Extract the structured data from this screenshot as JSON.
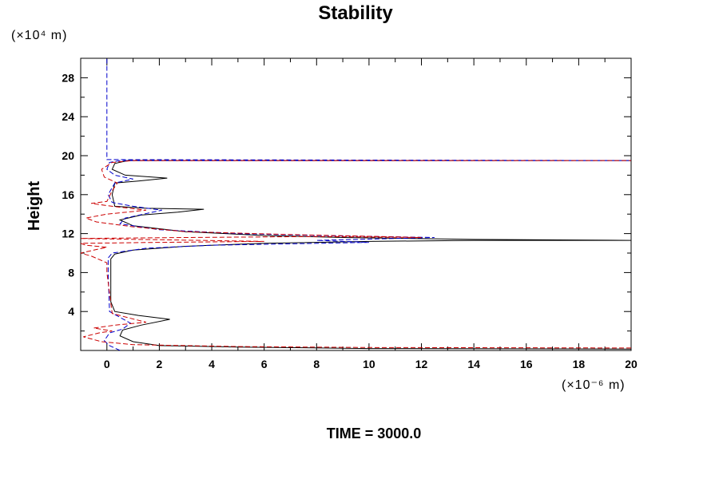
{
  "chart_data": {
    "type": "line",
    "title": "Stability",
    "ylabel": "Height",
    "xlabel": "",
    "x_unit_label": "(×10⁻⁶ m)",
    "y_unit_label": "(×10⁴ m)",
    "footer": "TIME = 3000.0",
    "xlim": [
      -1,
      20
    ],
    "ylim": [
      0,
      30
    ],
    "x_ticks": [
      0,
      2,
      4,
      6,
      8,
      10,
      12,
      14,
      16,
      18,
      20
    ],
    "x_tick_labels": [
      "0",
      "2",
      "4",
      "6",
      "8",
      "10",
      "12",
      "14",
      "16",
      "18",
      "20"
    ],
    "y_ticks": [
      4,
      8,
      12,
      16,
      20,
      24,
      28
    ],
    "y_tick_labels": [
      "4",
      "8",
      "12",
      "16",
      "20",
      "24",
      "28"
    ],
    "grid": false,
    "series": [
      {
        "color": "#000000",
        "style": "solid",
        "points": [
          [
            20,
            0.15
          ],
          [
            10,
            0.2
          ],
          [
            5,
            0.35
          ],
          [
            2,
            0.5
          ],
          [
            1,
            0.9
          ],
          [
            0.5,
            1.5
          ],
          [
            0.6,
            2.1
          ],
          [
            1.3,
            2.6
          ],
          [
            2.4,
            3.2
          ],
          [
            1.2,
            3.6
          ],
          [
            0.3,
            4.0
          ],
          [
            0.15,
            5
          ],
          [
            0.15,
            9.4
          ],
          [
            0.3,
            9.9
          ],
          [
            1,
            10.3
          ],
          [
            3,
            10.7
          ],
          [
            6,
            11.0
          ],
          [
            10,
            11.2
          ],
          [
            14,
            11.3
          ],
          [
            20,
            11.3
          ],
          [
            14,
            11.4
          ],
          [
            9,
            11.6
          ],
          [
            6,
            11.8
          ],
          [
            3,
            12.2
          ],
          [
            1,
            12.8
          ],
          [
            0.5,
            13.4
          ],
          [
            1.3,
            13.9
          ],
          [
            2.7,
            14.2
          ],
          [
            3.7,
            14.5
          ],
          [
            1.5,
            14.6
          ],
          [
            0.3,
            14.8
          ],
          [
            0.2,
            16
          ],
          [
            0.3,
            17.2
          ],
          [
            1.2,
            17.4
          ],
          [
            2.3,
            17.7
          ],
          [
            0.7,
            18.0
          ],
          [
            0.2,
            18.6
          ],
          [
            0.3,
            19.2
          ],
          [
            0.8,
            19.5
          ],
          [
            20,
            19.5
          ]
        ]
      },
      {
        "color": "#0000cc",
        "style": "dashed",
        "points": [
          [
            0.5,
            0
          ],
          [
            0.1,
            0.5
          ],
          [
            -0.1,
            1.0
          ],
          [
            0.1,
            1.8
          ],
          [
            0.6,
            2.2
          ],
          [
            0.9,
            2.8
          ],
          [
            0.5,
            3.4
          ],
          [
            0.1,
            4.0
          ],
          [
            0.05,
            8
          ],
          [
            0.05,
            9.5
          ],
          [
            0.2,
            10.0
          ],
          [
            1.5,
            10.5
          ],
          [
            4,
            10.8
          ],
          [
            8,
            11.0
          ],
          [
            10,
            11.1
          ],
          [
            8,
            11.3
          ],
          [
            11,
            11.5
          ],
          [
            12.5,
            11.6
          ],
          [
            8,
            11.8
          ],
          [
            5,
            12.0
          ],
          [
            2,
            12.4
          ],
          [
            0.5,
            13.0
          ],
          [
            0.7,
            13.6
          ],
          [
            2.1,
            14.4
          ],
          [
            1,
            14.8
          ],
          [
            0.2,
            15.2
          ],
          [
            0.05,
            16
          ],
          [
            0.3,
            17.2
          ],
          [
            1,
            17.6
          ],
          [
            0.3,
            18.0
          ],
          [
            0,
            18.6
          ],
          [
            0.1,
            19.3
          ],
          [
            0.5,
            19.5
          ],
          [
            20,
            19.5
          ],
          [
            0,
            19.6
          ],
          [
            0,
            30
          ]
        ]
      },
      {
        "color": "#cc0000",
        "style": "dashed",
        "points": [
          [
            20,
            0.25
          ],
          [
            10,
            0.3
          ],
          [
            5,
            0.4
          ],
          [
            1,
            0.6
          ],
          [
            -0.2,
            0.9
          ],
          [
            -0.9,
            1.4
          ],
          [
            -0.3,
            1.8
          ],
          [
            0.2,
            2.0
          ],
          [
            -0.5,
            2.3
          ],
          [
            0.3,
            2.6
          ],
          [
            1.5,
            2.9
          ],
          [
            0.9,
            3.3
          ],
          [
            0.2,
            3.8
          ],
          [
            0,
            8
          ],
          [
            0,
            9.0
          ],
          [
            -0.6,
            9.7
          ],
          [
            -1,
            10.0
          ],
          [
            -0.5,
            10.3
          ],
          [
            0,
            10.6
          ],
          [
            -0.8,
            10.8
          ],
          [
            -1,
            11.0
          ],
          [
            2,
            11.1
          ],
          [
            6,
            11.2
          ],
          [
            -1,
            11.5
          ],
          [
            3,
            11.6
          ],
          [
            8,
            11.7
          ],
          [
            12,
            11.6
          ],
          [
            7,
            11.9
          ],
          [
            3,
            12.2
          ],
          [
            1,
            12.7
          ],
          [
            -0.4,
            13.2
          ],
          [
            -0.8,
            13.6
          ],
          [
            0,
            14.0
          ],
          [
            1.5,
            14.4
          ],
          [
            0.2,
            14.8
          ],
          [
            -0.6,
            15.1
          ],
          [
            0,
            15.3
          ],
          [
            0.2,
            16.4
          ],
          [
            0.4,
            17.2
          ],
          [
            -0.1,
            17.8
          ],
          [
            -0.2,
            18.6
          ],
          [
            0.2,
            19.3
          ],
          [
            1,
            19.5
          ],
          [
            20,
            19.5
          ]
        ]
      }
    ]
  }
}
